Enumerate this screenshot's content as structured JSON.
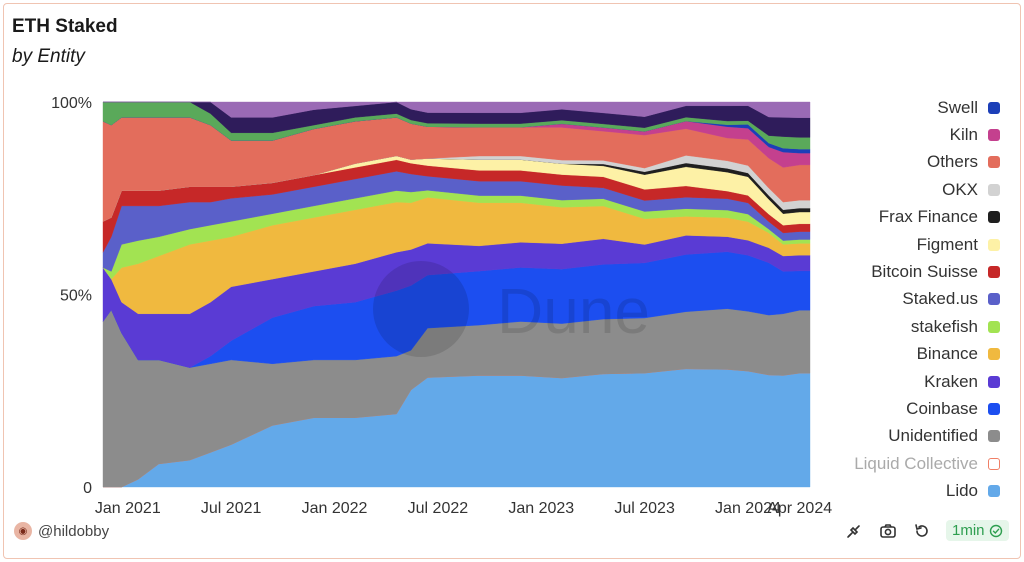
{
  "title": "ETH Staked",
  "subtitle": "by Entity",
  "watermark": "Dune",
  "author": "@hildobby",
  "refresh_badge": "1min",
  "icons": {
    "lineage": "unplug-icon",
    "screenshot": "camera-icon",
    "refresh": "refresh-icon",
    "status": "check-circle-icon"
  },
  "chart_data": {
    "type": "area",
    "stacked": true,
    "percent": true,
    "x_ticks": [
      "Jan 2021",
      "Jul 2021",
      "Jan 2022",
      "Jul 2022",
      "Jan 2023",
      "Jul 2023",
      "Jan 2024",
      "Apr 2024"
    ],
    "y_ticks": [
      "0",
      "50%",
      "100%"
    ],
    "ylim": [
      0,
      100
    ],
    "legend_position": "right",
    "x": [
      2020.88,
      2020.92,
      2020.97,
      2021.05,
      2021.15,
      2021.3,
      2021.4,
      2021.5,
      2021.7,
      2021.9,
      2022.1,
      2022.3,
      2022.37,
      2022.45,
      2022.7,
      2022.9,
      2023.1,
      2023.3,
      2023.5,
      2023.7,
      2023.9,
      2024.0,
      2024.1,
      2024.17,
      2024.25,
      2024.3
    ],
    "series": [
      {
        "name": "Lido",
        "color": "#63a9e9",
        "values": [
          0,
          0,
          0,
          2,
          6,
          7,
          9,
          11,
          16,
          18,
          18,
          19,
          27,
          31,
          31,
          31,
          30,
          31,
          31,
          31,
          31,
          31,
          30,
          29,
          29,
          29
        ]
      },
      {
        "name": "Liquid Collective",
        "color": "#f07f66",
        "values": [
          0,
          0,
          0,
          0,
          0,
          0,
          0,
          0,
          0,
          0,
          0,
          0,
          0,
          0,
          0,
          0,
          0,
          0,
          0,
          0,
          0,
          0,
          0,
          0,
          0,
          0
        ]
      },
      {
        "name": "Unidentified",
        "color": "#8c8c8c",
        "values": [
          43,
          46,
          40,
          31,
          27,
          24,
          23,
          22,
          16,
          15,
          15,
          15,
          11,
          14,
          14,
          15,
          15,
          15,
          15,
          15,
          16,
          16,
          16,
          16,
          16,
          16
        ]
      },
      {
        "name": "Coinbase",
        "color": "#1c4ef0",
        "values": [
          0,
          0,
          0,
          0,
          0,
          0,
          2,
          5,
          12,
          14,
          15,
          17,
          18,
          15,
          15,
          15,
          15,
          15,
          15,
          15,
          15,
          15,
          14,
          11,
          10,
          10
        ]
      },
      {
        "name": "Kraken",
        "color": "#5a3bd4",
        "values": [
          14,
          8,
          8,
          12,
          12,
          14,
          14,
          14,
          10,
          9,
          10,
          10,
          10,
          9,
          7,
          7,
          7,
          7,
          5,
          5,
          4,
          4,
          4,
          4,
          4,
          4
        ]
      },
      {
        "name": "Binance",
        "color": "#f0b93f",
        "values": [
          0,
          0,
          9,
          13,
          15,
          18,
          16,
          13,
          14,
          14,
          14,
          13,
          13,
          13,
          12,
          11,
          10,
          9,
          7,
          5,
          5,
          5,
          4,
          3,
          3,
          3
        ]
      },
      {
        "name": "stakefish",
        "color": "#a2e352",
        "values": [
          0,
          2,
          6,
          6,
          5,
          4,
          4,
          4,
          3,
          3,
          3,
          3,
          3,
          2,
          2,
          2,
          2,
          2,
          2,
          2,
          2,
          2,
          1,
          1,
          1,
          1
        ]
      },
      {
        "name": "Staked.us",
        "color": "#5a60c9",
        "values": [
          4,
          9,
          10,
          9,
          8,
          7,
          6,
          6,
          5,
          5,
          5,
          5,
          5,
          4,
          4,
          4,
          4,
          3,
          3,
          3,
          3,
          3,
          2,
          2,
          2,
          2
        ]
      },
      {
        "name": "Bitcoin Suisse",
        "color": "#c62828",
        "values": [
          8,
          5,
          4,
          4,
          4,
          4,
          4,
          3,
          3,
          3,
          3,
          3,
          3,
          3,
          3,
          3,
          3,
          3,
          3,
          3,
          2,
          2,
          2,
          2,
          2,
          2
        ]
      },
      {
        "name": "Figment",
        "color": "#fdf1a6",
        "values": [
          0,
          0,
          0,
          0,
          0,
          0,
          0,
          0,
          0,
          0,
          1,
          1,
          1,
          2,
          3,
          3,
          3,
          3,
          4,
          5,
          5,
          5,
          4,
          3,
          3,
          3
        ]
      },
      {
        "name": "Frax Finance",
        "color": "#1f1f1f",
        "values": [
          0,
          0,
          0,
          0,
          0,
          0,
          0,
          0,
          0,
          0,
          0,
          0,
          0,
          0,
          0,
          0,
          0,
          0.5,
          0.8,
          1,
          1,
          1,
          1,
          1,
          1,
          1
        ]
      },
      {
        "name": "OKX",
        "color": "#d2d2d2",
        "values": [
          0,
          0,
          0,
          0,
          0,
          0,
          0,
          0,
          0,
          0,
          0,
          0,
          0,
          0,
          1,
          1,
          1,
          1,
          1,
          2,
          2,
          2,
          2,
          2,
          2,
          2
        ]
      },
      {
        "name": "Others",
        "color": "#e36d5c",
        "values": [
          26,
          24,
          19,
          19,
          19,
          18,
          16,
          12,
          11,
          12,
          11,
          10,
          10,
          9,
          8,
          8,
          9,
          8,
          9,
          7,
          6,
          7,
          8,
          9,
          9,
          9
        ]
      },
      {
        "name": "Kiln",
        "color": "#c4408e",
        "values": [
          0,
          0,
          0,
          0,
          0,
          0,
          0,
          0,
          0,
          0,
          0,
          0,
          0,
          0,
          0,
          0,
          1,
          1,
          1,
          2,
          3,
          3,
          3,
          4,
          3,
          3
        ]
      },
      {
        "name": "Swell",
        "color": "#1c3fb8",
        "values": [
          0,
          0,
          0,
          0,
          0,
          0,
          0,
          0,
          0,
          0,
          0,
          0,
          0,
          0,
          0,
          0,
          0,
          0,
          0,
          0,
          0.5,
          1,
          1,
          1,
          1,
          1
        ]
      },
      {
        "name": "",
        "color": "#5aa95a",
        "values": [
          5,
          6,
          4,
          4,
          4,
          4,
          3,
          2,
          2,
          1,
          1,
          1,
          1,
          1,
          1,
          1,
          1,
          1,
          1,
          1,
          1,
          1,
          2,
          3,
          3,
          3
        ]
      },
      {
        "name": "",
        "color": "#2f1c5b",
        "values": [
          0,
          0,
          0,
          0,
          0,
          0,
          3,
          4,
          4,
          4,
          3,
          3,
          3,
          3,
          3,
          3,
          3,
          3,
          3,
          3,
          4,
          4,
          5,
          5,
          5,
          5
        ]
      },
      {
        "name": "",
        "color": "#9a6ab5",
        "values": [
          0,
          0,
          0,
          0,
          0,
          0,
          0,
          4,
          4,
          2,
          1,
          0,
          2,
          3,
          3,
          3,
          2,
          3,
          4,
          1,
          1,
          1,
          4,
          4,
          4,
          4
        ]
      }
    ]
  }
}
